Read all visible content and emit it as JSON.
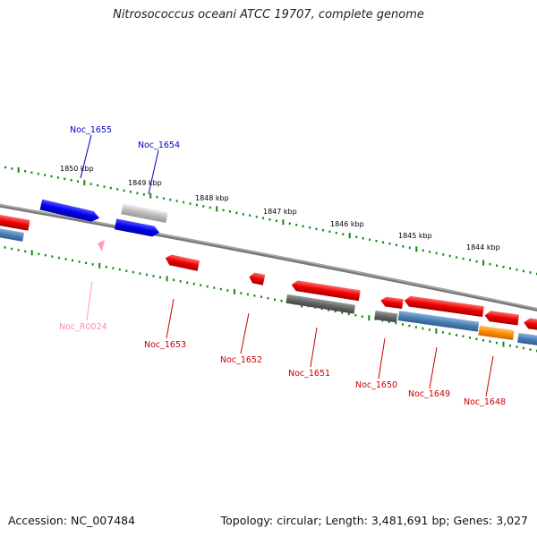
{
  "title": "Nitrosococcus oceani ATCC 19707, complete genome",
  "footer": {
    "accession": "Accession: NC_007484",
    "summary": "Topology: circular; Length: 3,481,691 bp; Genes: 3,027"
  },
  "scale": [
    "1850 kbp",
    "1849 kbp",
    "1848 kbp",
    "1847 kbp",
    "1846 kbp",
    "1845 kbp",
    "1844 kbp"
  ],
  "genes": [
    {
      "name": "Noc_1655",
      "strand": "forward",
      "color": "#0000cc"
    },
    {
      "name": "Noc_1654",
      "strand": "forward",
      "color": "#0000cc"
    },
    {
      "name": "Noc_R0024",
      "strand": "forward",
      "color": "#ff99cc"
    },
    {
      "name": "Noc_1653",
      "strand": "reverse",
      "color": "#cc0000"
    },
    {
      "name": "Noc_1652",
      "strand": "reverse",
      "color": "#cc0000"
    },
    {
      "name": "Noc_1651",
      "strand": "reverse",
      "color": "#cc0000"
    },
    {
      "name": "Noc_1650",
      "strand": "reverse",
      "color": "#cc0000"
    },
    {
      "name": "Noc_1649",
      "strand": "reverse",
      "color": "#cc0000"
    },
    {
      "name": "Noc_1648",
      "strand": "reverse",
      "color": "#cc0000"
    }
  ],
  "colors": {
    "forward_gene": "#0000ee",
    "reverse_gene": "#ee0000",
    "backbone": "#888888",
    "ticks": "#118811",
    "grey_feature": "#666666",
    "light_grey_feature": "#bbbbbb",
    "blue_feature": "#4a7fb5",
    "orange_feature": "#ff8c00",
    "rna": "#ff99cc"
  }
}
